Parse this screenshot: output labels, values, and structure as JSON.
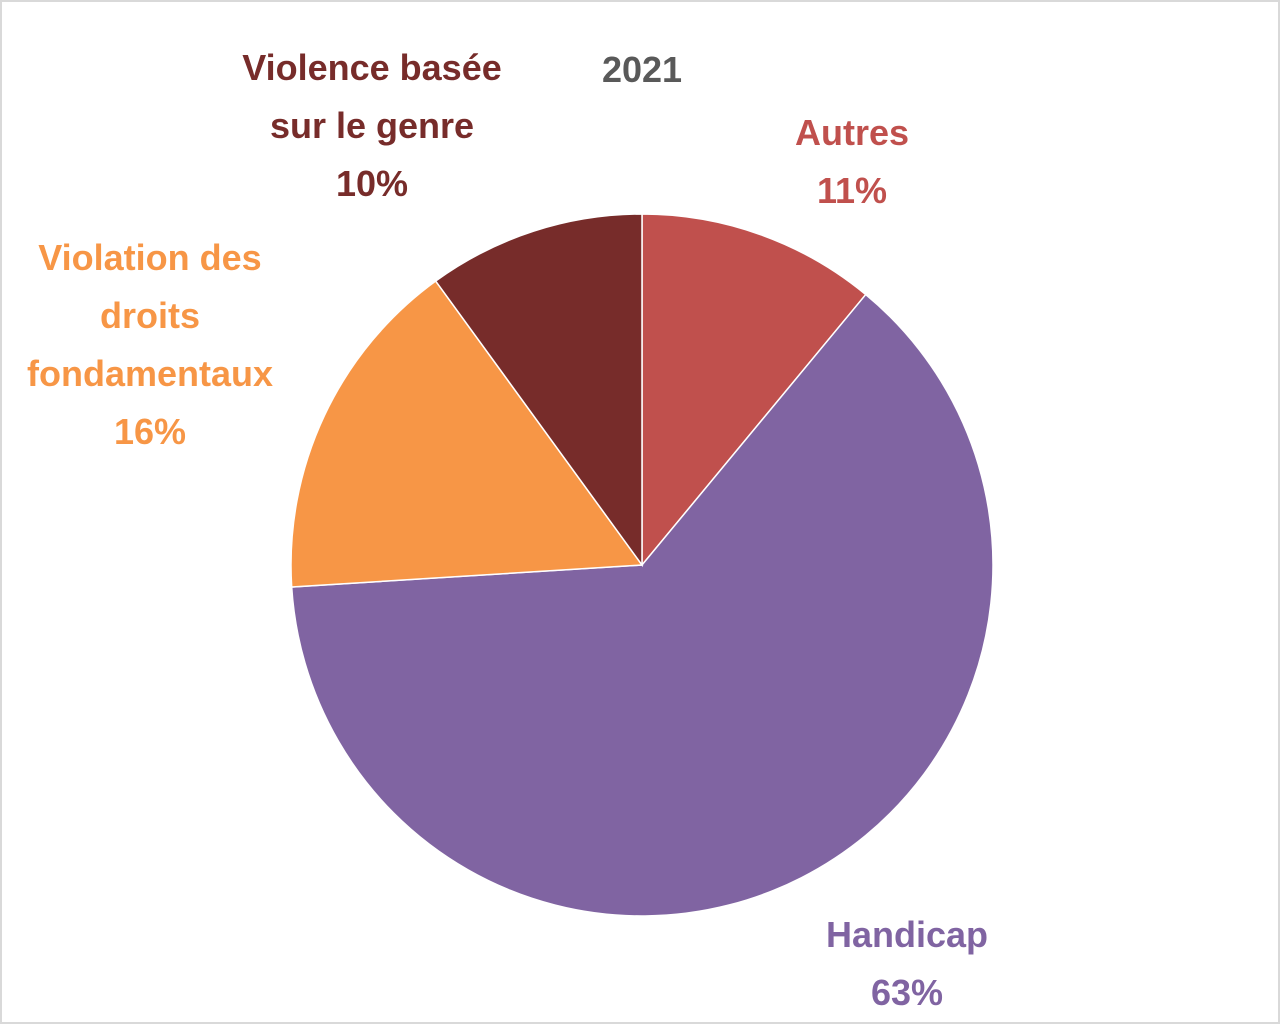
{
  "chart_data": {
    "type": "pie",
    "title": "2021",
    "slices": [
      {
        "label": "Autres",
        "value": 11,
        "value_label": "11%",
        "color": "#c0504d"
      },
      {
        "label": "Handicap",
        "value": 63,
        "value_label": "63%",
        "color": "#8064a2"
      },
      {
        "label": "Violation des droits fondamentaux",
        "value": 16,
        "value_label": "16%",
        "color": "#f79646"
      },
      {
        "label": "Violence basée sur le genre",
        "value": 10,
        "value_label": "10%",
        "color": "#772c2a"
      }
    ],
    "start_angle": "12 o'clock",
    "direction": "clockwise",
    "legend": "none"
  }
}
